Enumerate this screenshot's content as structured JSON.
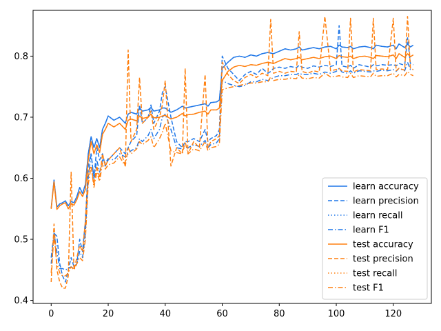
{
  "chart_data": {
    "type": "line",
    "title": "",
    "xlabel": "",
    "ylabel": "",
    "xlim": [
      -6.35,
      133.35
    ],
    "ylim": [
      0.395,
      0.875
    ],
    "xticks": [
      0,
      20,
      40,
      60,
      80,
      100,
      120
    ],
    "yticks": [
      0.4,
      0.5,
      0.6,
      0.7,
      0.8
    ],
    "grid": false,
    "legend_position": "lower-right",
    "colors": {
      "learn": "#1f77e8",
      "test": "#ff7f0e"
    },
    "x": [
      0,
      1,
      2,
      3,
      4,
      5,
      6,
      7,
      8,
      9,
      10,
      11,
      12,
      13,
      14,
      15,
      16,
      17,
      18,
      19,
      20,
      22,
      24,
      26,
      27,
      28,
      30,
      31,
      32,
      34,
      35,
      36,
      38,
      39,
      40,
      42,
      44,
      46,
      47,
      48,
      50,
      52,
      54,
      55,
      56,
      58,
      59,
      60,
      62,
      64,
      66,
      68,
      70,
      72,
      74,
      76,
      77,
      78,
      80,
      82,
      84,
      86,
      87,
      88,
      90,
      92,
      94,
      96,
      98,
      100,
      101,
      102,
      104,
      105,
      106,
      108,
      110,
      112,
      113,
      114,
      116,
      118,
      120,
      121,
      122,
      124,
      125,
      126,
      127
    ],
    "series": [
      {
        "name": "learn accuracy",
        "style": "solid",
        "color": "#1f77e8",
        "values": [
          0.551,
          0.597,
          0.553,
          0.558,
          0.56,
          0.563,
          0.555,
          0.562,
          0.56,
          0.57,
          0.585,
          0.575,
          0.59,
          0.64,
          0.668,
          0.65,
          0.665,
          0.65,
          0.68,
          0.69,
          0.702,
          0.695,
          0.7,
          0.69,
          0.705,
          0.708,
          0.705,
          0.715,
          0.71,
          0.712,
          0.716,
          0.71,
          0.712,
          0.715,
          0.715,
          0.708,
          0.712,
          0.718,
          0.715,
          0.716,
          0.718,
          0.72,
          0.722,
          0.718,
          0.724,
          0.725,
          0.728,
          0.78,
          0.79,
          0.798,
          0.8,
          0.798,
          0.802,
          0.8,
          0.804,
          0.806,
          0.805,
          0.804,
          0.808,
          0.812,
          0.81,
          0.812,
          0.815,
          0.81,
          0.812,
          0.814,
          0.812,
          0.815,
          0.816,
          0.812,
          0.818,
          0.815,
          0.814,
          0.816,
          0.812,
          0.815,
          0.816,
          0.814,
          0.812,
          0.818,
          0.816,
          0.815,
          0.818,
          0.812,
          0.82,
          0.814,
          0.82,
          0.815,
          0.818
        ]
      },
      {
        "name": "learn precision",
        "style": "dashed",
        "color": "#1f77e8",
        "values": [
          0.46,
          0.51,
          0.505,
          0.46,
          0.44,
          0.43,
          0.45,
          0.47,
          0.455,
          0.46,
          0.5,
          0.48,
          0.53,
          0.62,
          0.64,
          0.6,
          0.65,
          0.63,
          0.64,
          0.62,
          0.63,
          0.64,
          0.65,
          0.64,
          0.65,
          0.66,
          0.67,
          0.72,
          0.69,
          0.7,
          0.72,
          0.69,
          0.71,
          0.74,
          0.75,
          0.7,
          0.66,
          0.65,
          0.66,
          0.66,
          0.665,
          0.66,
          0.68,
          0.66,
          0.665,
          0.67,
          0.68,
          0.8,
          0.78,
          0.77,
          0.76,
          0.77,
          0.775,
          0.77,
          0.78,
          0.772,
          0.775,
          0.78,
          0.782,
          0.78,
          0.783,
          0.781,
          0.785,
          0.782,
          0.78,
          0.784,
          0.782,
          0.785,
          0.783,
          0.786,
          0.85,
          0.784,
          0.782,
          0.785,
          0.78,
          0.786,
          0.784,
          0.782,
          0.786,
          0.784,
          0.786,
          0.785,
          0.786,
          0.784,
          0.788,
          0.785,
          0.83,
          0.788,
          0.786
        ]
      },
      {
        "name": "learn recall",
        "style": "dotted",
        "color": "#1f77e8",
        "values": [
          0.551,
          0.597,
          0.553,
          0.558,
          0.56,
          0.563,
          0.555,
          0.562,
          0.56,
          0.57,
          0.585,
          0.575,
          0.59,
          0.64,
          0.668,
          0.65,
          0.665,
          0.65,
          0.68,
          0.69,
          0.702,
          0.695,
          0.7,
          0.69,
          0.705,
          0.708,
          0.705,
          0.715,
          0.71,
          0.712,
          0.716,
          0.71,
          0.712,
          0.715,
          0.715,
          0.708,
          0.712,
          0.718,
          0.715,
          0.716,
          0.718,
          0.72,
          0.722,
          0.718,
          0.724,
          0.725,
          0.728,
          0.78,
          0.79,
          0.798,
          0.8,
          0.798,
          0.802,
          0.8,
          0.804,
          0.806,
          0.805,
          0.804,
          0.808,
          0.812,
          0.81,
          0.812,
          0.815,
          0.81,
          0.812,
          0.814,
          0.812,
          0.815,
          0.816,
          0.812,
          0.818,
          0.815,
          0.814,
          0.816,
          0.812,
          0.815,
          0.816,
          0.814,
          0.812,
          0.818,
          0.816,
          0.815,
          0.818,
          0.812,
          0.82,
          0.814,
          0.82,
          0.815,
          0.818
        ]
      },
      {
        "name": "learn F1",
        "style": "dashdot",
        "color": "#1f77e8",
        "values": [
          0.47,
          0.51,
          0.48,
          0.452,
          0.452,
          0.45,
          0.452,
          0.455,
          0.452,
          0.46,
          0.48,
          0.47,
          0.51,
          0.6,
          0.64,
          0.6,
          0.63,
          0.61,
          0.63,
          0.625,
          0.632,
          0.63,
          0.64,
          0.635,
          0.64,
          0.645,
          0.65,
          0.665,
          0.66,
          0.67,
          0.68,
          0.665,
          0.68,
          0.7,
          0.705,
          0.68,
          0.65,
          0.648,
          0.65,
          0.65,
          0.655,
          0.652,
          0.662,
          0.65,
          0.655,
          0.658,
          0.665,
          0.76,
          0.755,
          0.752,
          0.75,
          0.752,
          0.758,
          0.758,
          0.762,
          0.76,
          0.762,
          0.765,
          0.768,
          0.768,
          0.77,
          0.77,
          0.772,
          0.77,
          0.77,
          0.772,
          0.77,
          0.774,
          0.772,
          0.775,
          0.78,
          0.774,
          0.772,
          0.776,
          0.772,
          0.776,
          0.775,
          0.774,
          0.776,
          0.775,
          0.777,
          0.776,
          0.778,
          0.775,
          0.78,
          0.776,
          0.79,
          0.778,
          0.778
        ]
      },
      {
        "name": "test accuracy",
        "style": "solid",
        "color": "#ff7f0e",
        "values": [
          0.55,
          0.594,
          0.549,
          0.555,
          0.558,
          0.56,
          0.55,
          0.558,
          0.556,
          0.565,
          0.578,
          0.57,
          0.582,
          0.63,
          0.66,
          0.64,
          0.655,
          0.642,
          0.672,
          0.68,
          0.69,
          0.684,
          0.69,
          0.68,
          0.695,
          0.697,
          0.694,
          0.702,
          0.698,
          0.7,
          0.705,
          0.699,
          0.7,
          0.702,
          0.703,
          0.697,
          0.7,
          0.706,
          0.702,
          0.704,
          0.705,
          0.708,
          0.71,
          0.705,
          0.712,
          0.712,
          0.715,
          0.76,
          0.775,
          0.782,
          0.785,
          0.783,
          0.786,
          0.785,
          0.788,
          0.79,
          0.789,
          0.788,
          0.792,
          0.796,
          0.794,
          0.796,
          0.798,
          0.794,
          0.796,
          0.798,
          0.796,
          0.799,
          0.8,
          0.796,
          0.801,
          0.799,
          0.798,
          0.8,
          0.796,
          0.799,
          0.8,
          0.798,
          0.796,
          0.801,
          0.8,
          0.799,
          0.802,
          0.796,
          0.804,
          0.798,
          0.804,
          0.799,
          0.802
        ]
      },
      {
        "name": "test precision",
        "style": "dashed",
        "color": "#ff7f0e",
        "values": [
          0.43,
          0.525,
          0.45,
          0.43,
          0.42,
          0.42,
          0.44,
          0.61,
          0.45,
          0.47,
          0.49,
          0.48,
          0.53,
          0.61,
          0.62,
          0.59,
          0.62,
          0.6,
          0.64,
          0.62,
          0.63,
          0.64,
          0.65,
          0.62,
          0.81,
          0.66,
          0.68,
          0.765,
          0.69,
          0.7,
          0.71,
          0.68,
          0.7,
          0.72,
          0.76,
          0.62,
          0.65,
          0.64,
          0.78,
          0.64,
          0.66,
          0.65,
          0.77,
          0.65,
          0.66,
          0.665,
          0.67,
          0.79,
          0.77,
          0.76,
          0.755,
          0.765,
          0.77,
          0.765,
          0.772,
          0.768,
          0.86,
          0.772,
          0.775,
          0.772,
          0.775,
          0.774,
          0.84,
          0.775,
          0.772,
          0.776,
          0.774,
          0.865,
          0.776,
          0.778,
          0.78,
          0.776,
          0.775,
          0.862,
          0.774,
          0.778,
          0.777,
          0.776,
          0.862,
          0.778,
          0.779,
          0.778,
          0.862,
          0.776,
          0.78,
          0.777,
          0.865,
          0.78,
          0.778
        ]
      },
      {
        "name": "test recall",
        "style": "dotted",
        "color": "#ff7f0e",
        "values": [
          0.55,
          0.594,
          0.549,
          0.555,
          0.558,
          0.56,
          0.55,
          0.558,
          0.556,
          0.565,
          0.578,
          0.57,
          0.582,
          0.63,
          0.66,
          0.64,
          0.655,
          0.642,
          0.672,
          0.68,
          0.69,
          0.684,
          0.69,
          0.68,
          0.695,
          0.697,
          0.694,
          0.702,
          0.698,
          0.7,
          0.705,
          0.699,
          0.7,
          0.702,
          0.703,
          0.697,
          0.7,
          0.706,
          0.702,
          0.704,
          0.705,
          0.708,
          0.71,
          0.705,
          0.712,
          0.712,
          0.715,
          0.76,
          0.775,
          0.782,
          0.785,
          0.783,
          0.786,
          0.785,
          0.788,
          0.79,
          0.789,
          0.788,
          0.792,
          0.796,
          0.794,
          0.796,
          0.798,
          0.794,
          0.796,
          0.798,
          0.796,
          0.799,
          0.8,
          0.796,
          0.801,
          0.799,
          0.798,
          0.8,
          0.796,
          0.799,
          0.8,
          0.798,
          0.796,
          0.801,
          0.8,
          0.799,
          0.802,
          0.796,
          0.804,
          0.798,
          0.804,
          0.799,
          0.802
        ]
      },
      {
        "name": "test F1",
        "style": "dashdot",
        "color": "#ff7f0e",
        "values": [
          0.445,
          0.505,
          0.46,
          0.445,
          0.44,
          0.44,
          0.445,
          0.455,
          0.45,
          0.46,
          0.47,
          0.465,
          0.5,
          0.59,
          0.62,
          0.585,
          0.61,
          0.595,
          0.625,
          0.615,
          0.622,
          0.625,
          0.635,
          0.62,
          0.65,
          0.64,
          0.648,
          0.66,
          0.655,
          0.662,
          0.668,
          0.65,
          0.665,
          0.675,
          0.69,
          0.645,
          0.642,
          0.64,
          0.66,
          0.64,
          0.648,
          0.645,
          0.66,
          0.645,
          0.65,
          0.652,
          0.656,
          0.745,
          0.748,
          0.75,
          0.752,
          0.754,
          0.756,
          0.756,
          0.758,
          0.758,
          0.766,
          0.76,
          0.762,
          0.762,
          0.764,
          0.763,
          0.77,
          0.764,
          0.763,
          0.765,
          0.764,
          0.772,
          0.766,
          0.767,
          0.768,
          0.766,
          0.765,
          0.772,
          0.765,
          0.768,
          0.767,
          0.766,
          0.772,
          0.767,
          0.768,
          0.768,
          0.772,
          0.766,
          0.77,
          0.768,
          0.775,
          0.77,
          0.768
        ]
      }
    ]
  }
}
